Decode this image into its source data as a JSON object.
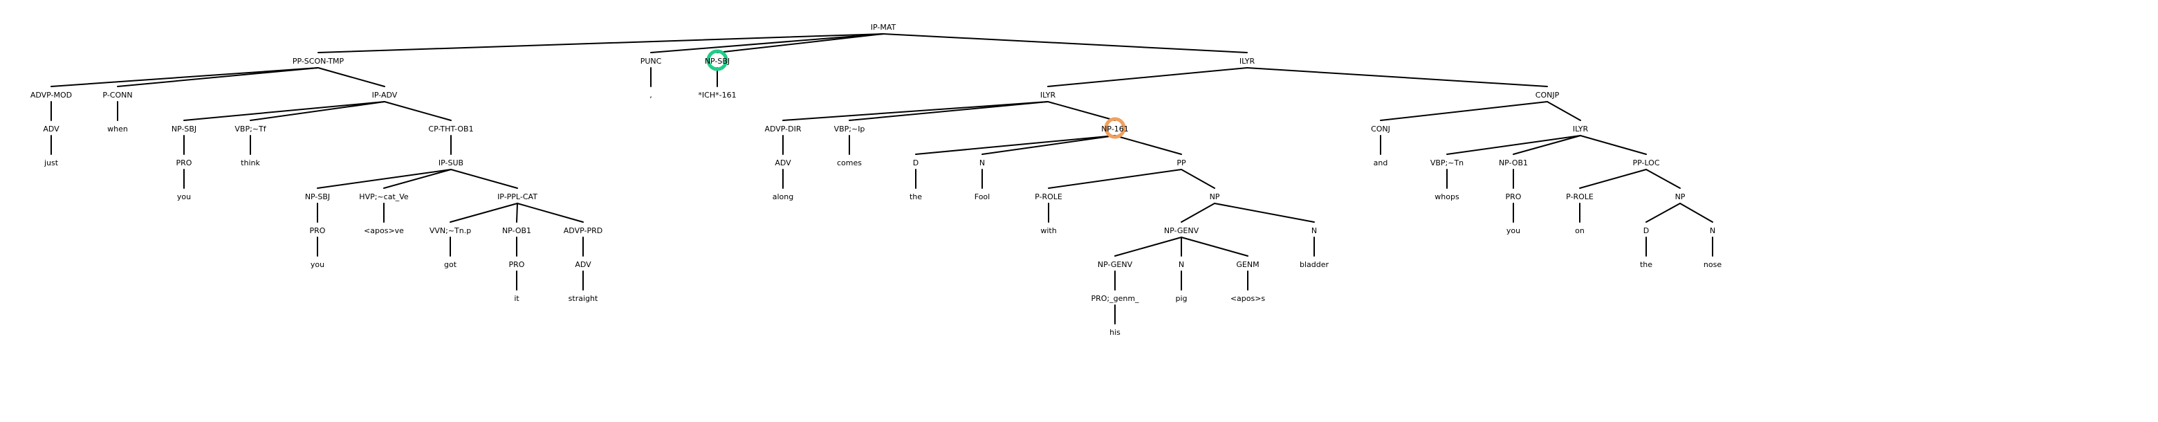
{
  "diagram": {
    "type": "syntax-tree",
    "nodes": [
      {
        "id": "n0",
        "label": "IP-MAT"
      },
      {
        "id": "n1",
        "label": "PP-SCON-TMP",
        "parent": "n0"
      },
      {
        "id": "n2",
        "label": "ADVP-MOD",
        "parent": "n1"
      },
      {
        "id": "n3",
        "label": "ADV",
        "parent": "n2"
      },
      {
        "id": "n4",
        "label": "just",
        "parent": "n3"
      },
      {
        "id": "n5",
        "label": "P-CONN",
        "parent": "n1"
      },
      {
        "id": "n6",
        "label": "when",
        "parent": "n5"
      },
      {
        "id": "n7",
        "label": "IP-ADV",
        "parent": "n1"
      },
      {
        "id": "n8",
        "label": "NP-SBJ",
        "parent": "n7"
      },
      {
        "id": "n9",
        "label": "PRO",
        "parent": "n8"
      },
      {
        "id": "n10",
        "label": "you",
        "parent": "n9"
      },
      {
        "id": "n11",
        "label": "VBP;~Tf",
        "parent": "n7"
      },
      {
        "id": "n12",
        "label": "think",
        "parent": "n11"
      },
      {
        "id": "n13",
        "label": "CP-THT-OB1",
        "parent": "n7"
      },
      {
        "id": "n14",
        "label": "IP-SUB",
        "parent": "n13"
      },
      {
        "id": "n15",
        "label": "NP-SBJ",
        "parent": "n14"
      },
      {
        "id": "n16",
        "label": "PRO",
        "parent": "n15"
      },
      {
        "id": "n17",
        "label": "you",
        "parent": "n16"
      },
      {
        "id": "n18",
        "label": "HVP;~cat_Ve",
        "parent": "n14"
      },
      {
        "id": "n19",
        "label": "<apos>ve",
        "parent": "n18"
      },
      {
        "id": "n20",
        "label": "IP-PPL-CAT",
        "parent": "n14"
      },
      {
        "id": "n21",
        "label": "VVN;~Tn.p",
        "parent": "n20"
      },
      {
        "id": "n22",
        "label": "got",
        "parent": "n21"
      },
      {
        "id": "n23",
        "label": "NP-OB1",
        "parent": "n20"
      },
      {
        "id": "n24",
        "label": "PRO",
        "parent": "n23"
      },
      {
        "id": "n25",
        "label": "it",
        "parent": "n24"
      },
      {
        "id": "n26",
        "label": "ADVP-PRD",
        "parent": "n20"
      },
      {
        "id": "n27",
        "label": "ADV",
        "parent": "n26"
      },
      {
        "id": "n28",
        "label": "straight",
        "parent": "n27"
      },
      {
        "id": "n29",
        "label": "PUNC",
        "parent": "n0"
      },
      {
        "id": "n30",
        "label": ",",
        "parent": "n29"
      },
      {
        "id": "n31",
        "label": "NP-SBJ",
        "parent": "n0",
        "highlight": "#22cc88"
      },
      {
        "id": "n32",
        "label": "*ICH*-161",
        "parent": "n31"
      },
      {
        "id": "n33",
        "label": "ILYR",
        "parent": "n0"
      },
      {
        "id": "n34",
        "label": "ILYR",
        "parent": "n33"
      },
      {
        "id": "n35",
        "label": "ADVP-DIR",
        "parent": "n34"
      },
      {
        "id": "n36",
        "label": "ADV",
        "parent": "n35"
      },
      {
        "id": "n37",
        "label": "along",
        "parent": "n36"
      },
      {
        "id": "n38",
        "label": "VBP;~Ip",
        "parent": "n34"
      },
      {
        "id": "n39",
        "label": "comes",
        "parent": "n38"
      },
      {
        "id": "n40",
        "label": "NP-161",
        "parent": "n34",
        "highlight": "#f0a060"
      },
      {
        "id": "n41",
        "label": "D",
        "parent": "n40"
      },
      {
        "id": "n42",
        "label": "the",
        "parent": "n41"
      },
      {
        "id": "n43",
        "label": "N",
        "parent": "n40"
      },
      {
        "id": "n44",
        "label": "Fool",
        "parent": "n43"
      },
      {
        "id": "n45",
        "label": "PP",
        "parent": "n40"
      },
      {
        "id": "n46",
        "label": "P-ROLE",
        "parent": "n45"
      },
      {
        "id": "n47",
        "label": "with",
        "parent": "n46"
      },
      {
        "id": "n48",
        "label": "NP",
        "parent": "n45"
      },
      {
        "id": "n49",
        "label": "NP-GENV",
        "parent": "n48"
      },
      {
        "id": "n50",
        "label": "NP-GENV",
        "parent": "n49"
      },
      {
        "id": "n51",
        "label": "PRO;_genm_",
        "parent": "n50"
      },
      {
        "id": "n52",
        "label": "his",
        "parent": "n51"
      },
      {
        "id": "n53",
        "label": "N",
        "parent": "n49"
      },
      {
        "id": "n54",
        "label": "pig",
        "parent": "n53"
      },
      {
        "id": "n55",
        "label": "GENM",
        "parent": "n49"
      },
      {
        "id": "n56",
        "label": "<apos>s",
        "parent": "n55"
      },
      {
        "id": "n57",
        "label": "N",
        "parent": "n48"
      },
      {
        "id": "n58",
        "label": "bladder",
        "parent": "n57"
      },
      {
        "id": "n59",
        "label": "CONJP",
        "parent": "n33"
      },
      {
        "id": "n60",
        "label": "CONJ",
        "parent": "n59"
      },
      {
        "id": "n61",
        "label": "and",
        "parent": "n60"
      },
      {
        "id": "n62",
        "label": "ILYR",
        "parent": "n59"
      },
      {
        "id": "n63",
        "label": "VBP;~Tn",
        "parent": "n62"
      },
      {
        "id": "n64",
        "label": "whops",
        "parent": "n63"
      },
      {
        "id": "n65",
        "label": "NP-OB1",
        "parent": "n62"
      },
      {
        "id": "n66",
        "label": "PRO",
        "parent": "n65"
      },
      {
        "id": "n67",
        "label": "you",
        "parent": "n66"
      },
      {
        "id": "n68",
        "label": "PP-LOC",
        "parent": "n62"
      },
      {
        "id": "n69",
        "label": "P-ROLE",
        "parent": "n68"
      },
      {
        "id": "n70",
        "label": "on",
        "parent": "n69"
      },
      {
        "id": "n71",
        "label": "NP",
        "parent": "n68"
      },
      {
        "id": "n72",
        "label": "D",
        "parent": "n71"
      },
      {
        "id": "n73",
        "label": "the",
        "parent": "n72"
      },
      {
        "id": "n74",
        "label": "N",
        "parent": "n71"
      },
      {
        "id": "n75",
        "label": "nose",
        "parent": "n74"
      }
    ]
  }
}
